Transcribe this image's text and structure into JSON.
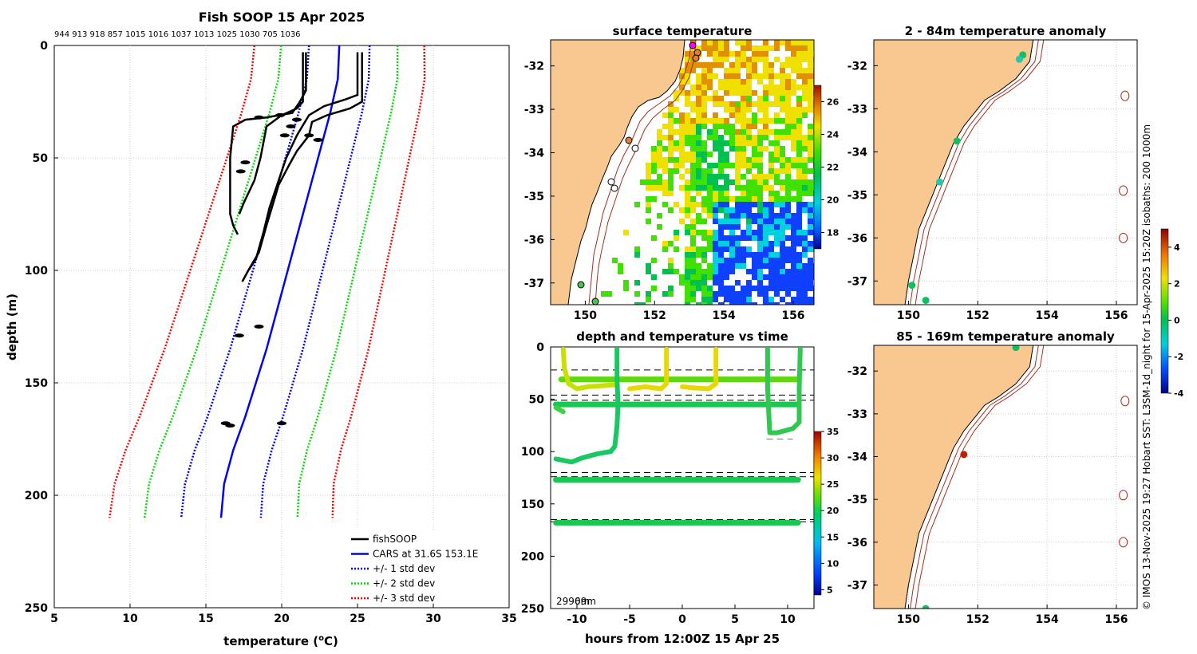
{
  "profile": {
    "title": "Fish SOOP 15 Apr 2025",
    "top_numbers": "944 913 918 857 1015 1016 1037 1013 1025 1030 705 1036",
    "xlabel": "temperature (oC)",
    "xlabel_main": "temperature (",
    "xlabel_sup": "o",
    "xlabel_tail": "C)",
    "ylabel": "depth (m)",
    "xlim": [
      5,
      35
    ],
    "ylim": [
      0,
      250
    ],
    "xticks": [
      5,
      10,
      15,
      20,
      25,
      30,
      35
    ],
    "yticks": [
      0,
      50,
      100,
      150,
      200,
      250
    ],
    "legend": [
      {
        "label": "fishSOOP",
        "color": "#000000",
        "style": "solid"
      },
      {
        "label": "CARS at 31.6S 153.1E",
        "color": "#0000ff",
        "style": "solid"
      },
      {
        "label": "+/- 1 std dev",
        "color": "#0000ff",
        "style": "dotted"
      },
      {
        "label": "+/- 2 std dev",
        "color": "#00dd00",
        "style": "dotted"
      },
      {
        "label": "+/- 3 std dev",
        "color": "#ff0000",
        "style": "dotted"
      }
    ],
    "cars_mean": [
      [
        23.8,
        0
      ],
      [
        23.7,
        15
      ],
      [
        23.2,
        30
      ],
      [
        22.6,
        45
      ],
      [
        22.0,
        60
      ],
      [
        21.4,
        75
      ],
      [
        20.8,
        90
      ],
      [
        20.2,
        105
      ],
      [
        19.6,
        120
      ],
      [
        19.0,
        135
      ],
      [
        18.3,
        150
      ],
      [
        17.6,
        165
      ],
      [
        16.8,
        180
      ],
      [
        16.2,
        195
      ],
      [
        16.0,
        210
      ]
    ],
    "std": [
      2.5,
      4.8,
      7.0
    ],
    "fish_casts": [
      [
        [
          21.6,
          3
        ],
        [
          21.6,
          20
        ],
        [
          21.2,
          25
        ],
        [
          20.7,
          30
        ],
        [
          19.0,
          32
        ],
        [
          17.6,
          33
        ],
        [
          16.8,
          36
        ],
        [
          16.6,
          50
        ],
        [
          16.6,
          75
        ],
        [
          16.8,
          80
        ],
        [
          17.1,
          84
        ]
      ],
      [
        [
          21.4,
          3
        ],
        [
          21.4,
          25
        ],
        [
          21.0,
          28
        ],
        [
          20.0,
          31
        ],
        [
          19.0,
          36
        ],
        [
          18.6,
          50
        ],
        [
          18.2,
          60
        ],
        [
          17.5,
          70
        ],
        [
          17.2,
          75
        ]
      ],
      [
        [
          25.3,
          3
        ],
        [
          25.3,
          25
        ],
        [
          24.5,
          28
        ],
        [
          23.0,
          31
        ],
        [
          22.0,
          34
        ],
        [
          21.8,
          40
        ],
        [
          21.0,
          47
        ],
        [
          20.5,
          53
        ],
        [
          19.8,
          62
        ],
        [
          19.0,
          80
        ],
        [
          18.5,
          92
        ],
        [
          17.8,
          100
        ],
        [
          17.4,
          105
        ]
      ],
      [
        [
          25.0,
          3
        ],
        [
          25.0,
          22
        ],
        [
          24.2,
          24
        ],
        [
          22.8,
          27
        ],
        [
          21.8,
          31
        ],
        [
          21.0,
          40
        ],
        [
          20.3,
          50
        ],
        [
          19.8,
          60
        ],
        [
          19.2,
          72
        ],
        [
          18.8,
          83
        ],
        [
          18.3,
          95
        ],
        [
          17.8,
          100
        ]
      ]
    ],
    "fish_blobs": [
      [
        20.2,
        40
      ],
      [
        20.6,
        36
      ],
      [
        21.0,
        33
      ],
      [
        21.8,
        40
      ],
      [
        22.4,
        42
      ],
      [
        17.6,
        52
      ],
      [
        17.3,
        56
      ],
      [
        18.5,
        125
      ],
      [
        17.2,
        129
      ],
      [
        20.0,
        168
      ],
      [
        16.6,
        169
      ],
      [
        16.3,
        168
      ],
      [
        19.9,
        31
      ],
      [
        18.5,
        32
      ]
    ]
  },
  "sst": {
    "title": "surface temperature",
    "xticks": [
      "150",
      "152",
      "154",
      "156"
    ],
    "yticks": [
      "-32",
      "-33",
      "-34",
      "-35",
      "-36",
      "-37"
    ],
    "xlim": [
      149.0,
      156.6
    ],
    "ylim": [
      -37.5,
      -31.4
    ],
    "colorbar_ticks": [
      18,
      20,
      22,
      24,
      26
    ],
    "colorbar_range": [
      17,
      27
    ]
  },
  "anom1": {
    "title": "2 - 84m temperature anomaly",
    "xticks": [
      "150",
      "152",
      "154",
      "156"
    ],
    "yticks": [
      "-32",
      "-33",
      "-34",
      "-35",
      "-36",
      "-37"
    ],
    "points": [
      [
        153.3,
        -31.75,
        0.5
      ],
      [
        153.2,
        -31.85,
        0.7
      ],
      [
        151.4,
        -33.75,
        0.2
      ],
      [
        150.9,
        -34.7,
        0.8
      ],
      [
        150.1,
        -37.1,
        0.1
      ],
      [
        150.5,
        -37.45,
        0.0
      ]
    ]
  },
  "anom2": {
    "title": "85 - 169m temperature anomaly",
    "xticks": [
      "150",
      "152",
      "154",
      "156"
    ],
    "yticks": [
      "-32",
      "-33",
      "-34",
      "-35",
      "-36",
      "-37"
    ],
    "points": [
      [
        153.1,
        -31.45,
        0.1
      ],
      [
        151.6,
        -33.95,
        3.8
      ],
      [
        150.5,
        -37.55,
        0.0
      ]
    ]
  },
  "anom_colorbar": {
    "ticks": [
      "4",
      "2",
      "0",
      "-2",
      "-4"
    ],
    "range": [
      -4,
      5
    ]
  },
  "timeseries": {
    "title": "depth and temperature vs time",
    "xlabel": "hours from 12:00Z 15 Apr 25",
    "xticks": [
      "-10",
      "-5",
      "0",
      "5",
      "10"
    ],
    "yticks": [
      "0",
      "50",
      "100",
      "150",
      "200",
      "250"
    ],
    "xlim": [
      -12.5,
      12.5
    ],
    "ylim": [
      0,
      250
    ],
    "note": "2996",
    "note_tail": "m",
    "note_tail_b": "09m",
    "colorbar_ticks": [
      "35",
      "30",
      "25",
      "20",
      "15",
      "10",
      "5"
    ],
    "colorbar_range": [
      4,
      35
    ],
    "dashed_depths": [
      22,
      46,
      51,
      120,
      124,
      165,
      167
    ],
    "bands": [
      {
        "depth": 31,
        "x0": -11.5,
        "x1": 11,
        "temp": 21
      },
      {
        "depth": 55,
        "x0": -12,
        "x1": 11,
        "temp": 20
      },
      {
        "depth": 127,
        "x0": -12,
        "x1": 11,
        "temp": 19.5
      },
      {
        "depth": 168,
        "x0": -12,
        "x1": 11,
        "temp": 19.5
      }
    ]
  },
  "copyright": "© IMOS 13-Nov-2025 19:27 Hobart SST: L3SM-1d_night for 15-Apr-2025 15:20Z isobaths: 200  1000m"
}
